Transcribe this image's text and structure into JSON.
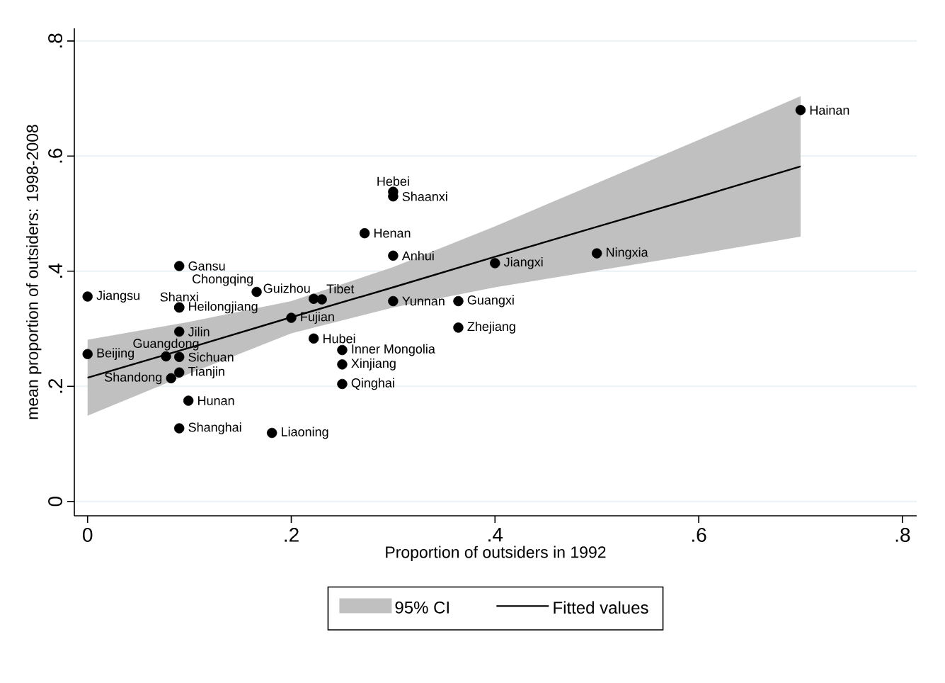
{
  "chart_data": {
    "type": "scatter",
    "xlabel": "Proportion of outsiders in 1992",
    "ylabel": "mean proportion of outsiders: 1998-2008",
    "xlim": [
      -0.013,
      0.814
    ],
    "ylim": [
      -0.025,
      0.822
    ],
    "xticks": [
      0,
      {
        "value": 0.2,
        "label": ".2"
      },
      {
        "value": 0.4,
        "label": ".4"
      },
      {
        "value": 0.6,
        "label": ".6"
      },
      {
        "value": 0.8,
        "label": ".8"
      }
    ],
    "yticks": [
      0,
      {
        "value": 0.2,
        "label": ".2"
      },
      {
        "value": 0.4,
        "label": ".4"
      },
      {
        "value": 0.6,
        "label": ".6"
      },
      {
        "value": 0.8,
        "label": ".8"
      }
    ],
    "grid": "y",
    "legend": "bottom",
    "series": [
      {
        "name": "Fitted values",
        "type": "line",
        "color": "#000000",
        "x": [
          0,
          0.1,
          0.2,
          0.3,
          0.4,
          0.5,
          0.6,
          0.7
        ],
        "values": [
          0.215,
          0.267,
          0.32,
          0.372,
          0.425,
          0.477,
          0.529,
          0.582
        ],
        "lower": [
          0.149,
          0.222,
          0.292,
          0.337,
          0.372,
          0.401,
          0.43,
          0.46
        ],
        "upper": [
          0.281,
          0.312,
          0.348,
          0.407,
          0.478,
          0.553,
          0.628,
          0.704
        ]
      },
      {
        "color": "#000000",
        "marker": "circle",
        "x": [
          0.7,
          0.3,
          0.3,
          0.272,
          0.3,
          0.5,
          0.4,
          0.09,
          0,
          0.166,
          0.222,
          0.23,
          0.3,
          0.364,
          0.09,
          0.09,
          0.2,
          0.364,
          0.09,
          0.222,
          0.25,
          0,
          0.077,
          0.09,
          0.25,
          0.09,
          0.082,
          0.25,
          0.099,
          0.09,
          0.181
        ],
        "values": [
          0.68,
          0.538,
          0.53,
          0.466,
          0.427,
          0.431,
          0.414,
          0.409,
          0.356,
          0.364,
          0.352,
          0.351,
          0.348,
          0.348,
          0.337,
          0.337,
          0.319,
          0.302,
          0.295,
          0.283,
          0.263,
          0.256,
          0.252,
          0.251,
          0.238,
          0.224,
          0.214,
          0.204,
          0.175,
          0.127,
          0.119
        ]
      }
    ],
    "annotations": [
      "95% CI",
      {
        "text": "Hainan",
        "x": 0.7,
        "y": 0.68
      },
      {
        "text": "Hebei",
        "x": 0.3,
        "y": 0.538
      },
      {
        "text": "Shaanxi",
        "x": 0.3,
        "y": 0.53
      },
      {
        "text": "Henan",
        "x": 0.272,
        "y": 0.466
      },
      {
        "text": "Anhui",
        "x": 0.3,
        "y": 0.427
      },
      {
        "text": "Ningxia",
        "x": 0.5,
        "y": 0.431
      },
      {
        "text": "Jiangxi",
        "x": 0.4,
        "y": 0.414
      },
      {
        "text": "Gansu",
        "x": 0.09,
        "y": 0.409
      },
      {
        "text": "Jiangsu",
        "x": 0,
        "y": 0.356
      },
      {
        "text": "Chongqing",
        "x": 0.166,
        "y": 0.364
      },
      {
        "text": "Guizhou",
        "x": 0.222,
        "y": 0.352
      },
      {
        "text": "Tibet",
        "x": 0.23,
        "y": 0.351
      },
      {
        "text": "Yunnan",
        "x": 0.3,
        "y": 0.348
      },
      {
        "text": "Guangxi",
        "x": 0.364,
        "y": 0.348
      },
      {
        "text": "Shanxi",
        "x": 0.09,
        "y": 0.337
      },
      {
        "text": "Heilongjiang",
        "x": 0.09,
        "y": 0.337
      },
      {
        "text": "Fujian",
        "x": 0.2,
        "y": 0.319
      },
      {
        "text": "Zhejiang",
        "x": 0.364,
        "y": 0.302
      },
      {
        "text": "Jilin",
        "x": 0.09,
        "y": 0.295
      },
      {
        "text": "Hubei",
        "x": 0.222,
        "y": 0.283
      },
      {
        "text": "Inner Mongolia",
        "x": 0.25,
        "y": 0.263
      },
      {
        "text": "Beijing",
        "x": 0,
        "y": 0.256
      },
      {
        "text": "Guangdong",
        "x": 0.077,
        "y": 0.252
      },
      {
        "text": "Sichuan",
        "x": 0.09,
        "y": 0.251
      },
      {
        "text": "Xinjiang",
        "x": 0.25,
        "y": 0.238
      },
      {
        "text": "Tianjin",
        "x": 0.09,
        "y": 0.224
      },
      {
        "text": "Shandong",
        "x": 0.082,
        "y": 0.214
      },
      {
        "text": "Qinghai",
        "x": 0.25,
        "y": 0.204
      },
      {
        "text": "Hunan",
        "x": 0.099,
        "y": 0.175
      },
      {
        "text": "Shanghai",
        "x": 0.09,
        "y": 0.127
      },
      {
        "text": "Liaoning",
        "x": 0.181,
        "y": 0.119
      }
    ]
  }
}
